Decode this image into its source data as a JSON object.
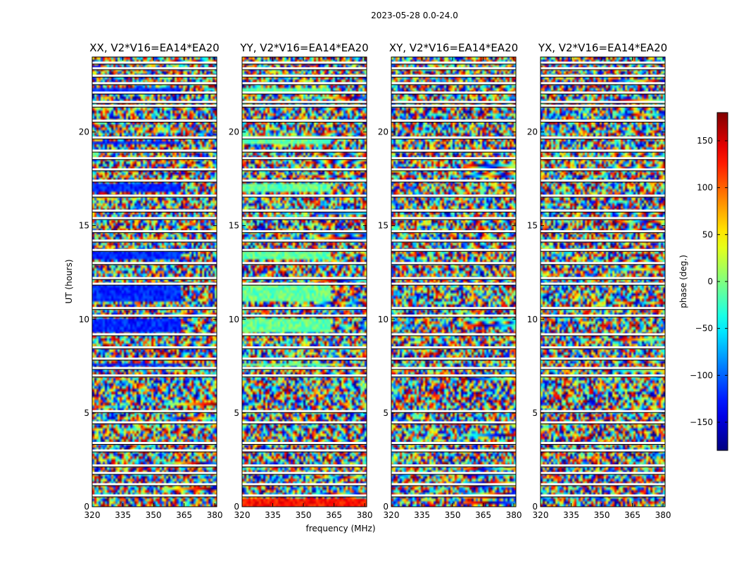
{
  "chart_data": {
    "type": "heatmap",
    "suptitle": "2023-05-28 0.0-24.0",
    "xlabel": "frequency (MHz)",
    "ylabel": "UT (hours)",
    "xlim": [
      320,
      381
    ],
    "ylim": [
      0,
      24
    ],
    "xticks": [
      320,
      335,
      350,
      365,
      380
    ],
    "yticks": [
      0,
      5,
      10,
      15,
      20
    ],
    "colormap": "jet",
    "colorbar": {
      "label": "phase (deg.)",
      "range": [
        -180,
        180
      ],
      "ticks": [
        -150,
        -100,
        -50,
        0,
        50,
        100,
        150
      ]
    },
    "panels": [
      {
        "title": "XX, V2*V16=EA14*EA20",
        "tint": "blue",
        "blue_bands": [
          [
            22.0,
            22.3
          ],
          [
            19.3,
            19.5
          ],
          [
            16.8,
            17.2
          ],
          [
            13.2,
            13.6
          ],
          [
            10.9,
            11.8
          ],
          [
            9.3,
            10.0
          ],
          [
            7.5,
            7.7
          ]
        ]
      },
      {
        "title": "YY, V2*V16=EA14*EA20",
        "tint": "green",
        "green_bands": [
          [
            22.0,
            22.3
          ],
          [
            19.3,
            19.8
          ],
          [
            16.8,
            17.2
          ],
          [
            13.2,
            13.6
          ],
          [
            10.9,
            11.8
          ],
          [
            9.3,
            10.0
          ],
          [
            7.5,
            7.7
          ]
        ],
        "red_bands": [
          [
            0.0,
            0.4
          ]
        ]
      },
      {
        "title": "XY, V2*V16=EA14*EA20",
        "tint": "random"
      },
      {
        "title": "YX, V2*V16=EA14*EA20",
        "tint": "random"
      }
    ],
    "flagged_rows_hours": [
      23.7,
      23.4,
      23.0,
      22.6,
      22.1,
      21.6,
      21.4,
      20.6,
      19.7,
      19.0,
      18.6,
      18.0,
      17.4,
      16.6,
      15.8,
      15.4,
      14.7,
      14.2,
      13.7,
      13.0,
      12.2,
      11.9,
      10.6,
      10.2,
      9.2,
      8.5,
      7.9,
      7.4,
      7.0,
      5.1,
      4.5,
      3.4,
      3.0,
      2.2,
      1.8,
      1.2,
      0.6
    ]
  }
}
